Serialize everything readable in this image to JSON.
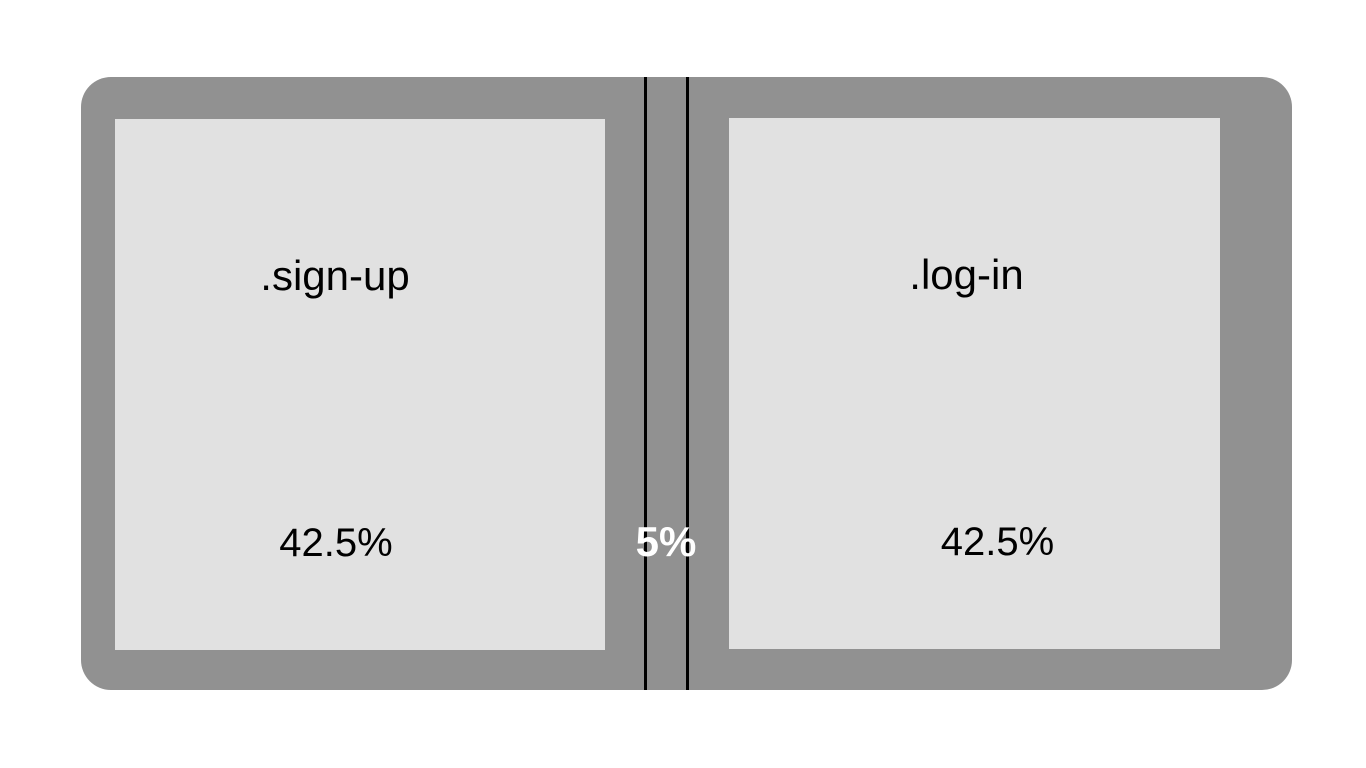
{
  "colors": {
    "container": "#919191",
    "panel": "#e1e1e1",
    "divider": "#000000",
    "gap_label": "#ffffff",
    "text": "#000000",
    "background": "#ffffff"
  },
  "panels": [
    {
      "name": ".sign-up",
      "width_label": "42.5%"
    },
    {
      "name": ".log-in",
      "width_label": "42.5%"
    }
  ],
  "gap": {
    "width_label": "5%"
  }
}
